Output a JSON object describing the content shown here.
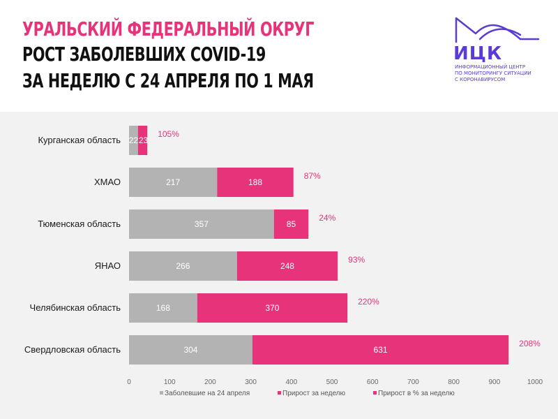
{
  "header": {
    "title_line1": "УРАЛЬСКИЙ ФЕДЕРАЛЬНЫЙ ОКРУГ",
    "title_line2": "РОСТ ЗАБОЛЕВШИХ COVID-19",
    "title_line3": "ЗА НЕДЕЛЮ С 24 АПРЕЛЯ ПО 1 МАЯ"
  },
  "logo": {
    "abbr": "ИЦК",
    "desc_line1": "ИНФОРМАЦИОННЫЙ ЦЕНТР",
    "desc_line2": "ПО МОНИТОРИНГУ СИТУАЦИИ",
    "desc_line3": "С КОРОНАВИРУСОМ",
    "color": "#5a3bd6"
  },
  "colors": {
    "base": "#b3b3b3",
    "growth": "#e6337a",
    "pct_text": "#e6337a",
    "panel_bg": "#f2f2f2"
  },
  "chart_data": {
    "type": "bar",
    "orientation": "horizontal",
    "stacked": true,
    "categories": [
      "Курганская область",
      "ХМАО",
      "Тюменская область",
      "ЯНАО",
      "Челябинская область",
      "Свердловская область"
    ],
    "series": [
      {
        "name": "Заболевшие на 24 апреля",
        "values": [
          22,
          217,
          357,
          266,
          168,
          304
        ],
        "color": "#b3b3b3"
      },
      {
        "name": "Прирост за неделю",
        "values": [
          23,
          188,
          85,
          248,
          370,
          631
        ],
        "color": "#e6337a"
      }
    ],
    "pct_series_name": "Прирост в % за неделю",
    "pct_labels": [
      "105%",
      "87%",
      "24%",
      "93%",
      "220%",
      "208%"
    ],
    "value_labels": {
      "base": [
        "22",
        "217",
        "357",
        "266",
        "168",
        "304"
      ],
      "growth": [
        "23",
        "188",
        "85",
        "248",
        "370",
        "631"
      ]
    },
    "xlim": [
      0,
      1000
    ],
    "xticks": [
      0,
      100,
      200,
      300,
      400,
      500,
      600,
      700,
      800,
      900,
      1000
    ],
    "grid": false,
    "legend_position": "bottom-center"
  }
}
